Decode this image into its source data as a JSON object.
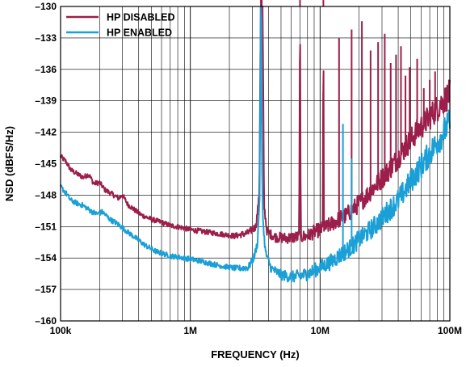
{
  "chart_data": {
    "type": "line",
    "title": "",
    "xlabel": "FREQUENCY (Hz)",
    "ylabel": "NSD (dBFS/Hz)",
    "xscale": "log",
    "xlim": [
      100000,
      100000000
    ],
    "ylim": [
      -160,
      -130
    ],
    "x_ticks": [
      {
        "value": 100000,
        "label": "100k"
      },
      {
        "value": 1000000,
        "label": "1M"
      },
      {
        "value": 10000000,
        "label": "10M"
      },
      {
        "value": 100000000,
        "label": "100M"
      }
    ],
    "y_ticks": [
      {
        "value": -130,
        "label": "–130"
      },
      {
        "value": -133,
        "label": "–133"
      },
      {
        "value": -136,
        "label": "–136"
      },
      {
        "value": -139,
        "label": "–139"
      },
      {
        "value": -142,
        "label": "–142"
      },
      {
        "value": -145,
        "label": "–145"
      },
      {
        "value": -148,
        "label": "–148"
      },
      {
        "value": -151,
        "label": "–151"
      },
      {
        "value": -154,
        "label": "–154"
      },
      {
        "value": -157,
        "label": "–157"
      },
      {
        "value": -160,
        "label": "–160"
      }
    ],
    "grid": true,
    "legend_position": "top-left",
    "series": [
      {
        "name": "HP DISABLED",
        "color": "#9b1f4a",
        "points": [
          [
            100000,
            -144.3
          ],
          [
            110000,
            -144.8
          ],
          [
            120000,
            -145.6
          ],
          [
            135000,
            -146.0
          ],
          [
            150000,
            -146.3
          ],
          [
            165000,
            -146.0
          ],
          [
            180000,
            -146.9
          ],
          [
            200000,
            -146.8
          ],
          [
            220000,
            -147.5
          ],
          [
            250000,
            -147.9
          ],
          [
            280000,
            -148.3
          ],
          [
            300000,
            -148.0
          ],
          [
            330000,
            -148.9
          ],
          [
            380000,
            -149.5
          ],
          [
            420000,
            -149.9
          ],
          [
            500000,
            -150.3
          ],
          [
            600000,
            -150.6
          ],
          [
            700000,
            -150.9
          ],
          [
            800000,
            -151.0
          ],
          [
            1000000,
            -151.3
          ],
          [
            1300000,
            -151.5
          ],
          [
            1700000,
            -151.7
          ],
          [
            2200000,
            -151.9
          ],
          [
            2800000,
            -151.6
          ],
          [
            3200000,
            -151.0
          ],
          [
            3400000,
            -148.0
          ],
          [
            3500000,
            -128.0
          ],
          [
            3600000,
            -128.0
          ],
          [
            3700000,
            -149.0
          ],
          [
            3900000,
            -151.5
          ],
          [
            4500000,
            -152.0
          ],
          [
            5500000,
            -152.1
          ],
          [
            6500000,
            -152.0
          ],
          [
            6900000,
            -152.0
          ],
          [
            7000000,
            -128.0
          ],
          [
            7100000,
            -152.0
          ],
          [
            8000000,
            -151.9
          ],
          [
            9000000,
            -151.5
          ],
          [
            10000000,
            -151.3
          ],
          [
            10500000,
            -151.2
          ],
          [
            10600000,
            -128.0
          ],
          [
            10700000,
            -151.2
          ],
          [
            12000000,
            -150.8
          ],
          [
            14000000,
            -150.3
          ],
          [
            16000000,
            -149.9
          ],
          [
            18000000,
            -149.3
          ],
          [
            20000000,
            -148.8
          ],
          [
            23000000,
            -148.0
          ],
          [
            27000000,
            -147.0
          ],
          [
            32000000,
            -146.0
          ],
          [
            38000000,
            -144.8
          ],
          [
            45000000,
            -143.5
          ],
          [
            55000000,
            -142.0
          ],
          [
            65000000,
            -141.0
          ],
          [
            80000000,
            -139.7
          ],
          [
            100000000,
            -138.3
          ]
        ]
      },
      {
        "name": "HP ENABLED",
        "color": "#1aa0d6",
        "points": [
          [
            100000,
            -147.2
          ],
          [
            110000,
            -147.8
          ],
          [
            120000,
            -148.5
          ],
          [
            135000,
            -148.8
          ],
          [
            150000,
            -149.0
          ],
          [
            170000,
            -149.5
          ],
          [
            190000,
            -149.8
          ],
          [
            210000,
            -149.6
          ],
          [
            240000,
            -150.3
          ],
          [
            280000,
            -150.8
          ],
          [
            320000,
            -151.4
          ],
          [
            380000,
            -152.1
          ],
          [
            450000,
            -152.8
          ],
          [
            550000,
            -153.4
          ],
          [
            700000,
            -153.8
          ],
          [
            900000,
            -154.0
          ],
          [
            1100000,
            -154.2
          ],
          [
            1400000,
            -154.5
          ],
          [
            1800000,
            -154.8
          ],
          [
            2300000,
            -155.0
          ],
          [
            2800000,
            -154.9
          ],
          [
            3100000,
            -153.9
          ],
          [
            3300000,
            -152.5
          ],
          [
            3420000,
            -148.0
          ],
          [
            3500000,
            -130.0
          ],
          [
            3580000,
            -147.0
          ],
          [
            3650000,
            -151.0
          ],
          [
            3800000,
            -153.5
          ],
          [
            4200000,
            -155.0
          ],
          [
            5000000,
            -155.6
          ],
          [
            6000000,
            -155.8
          ],
          [
            7000000,
            -155.7
          ],
          [
            8000000,
            -155.5
          ],
          [
            9000000,
            -155.2
          ],
          [
            10000000,
            -154.9
          ],
          [
            12000000,
            -154.4
          ],
          [
            14000000,
            -153.8
          ],
          [
            16000000,
            -153.3
          ],
          [
            18000000,
            -152.8
          ],
          [
            20000000,
            -152.2
          ],
          [
            24000000,
            -151.4
          ],
          [
            28000000,
            -150.6
          ],
          [
            33000000,
            -149.6
          ],
          [
            40000000,
            -148.5
          ],
          [
            48000000,
            -147.0
          ],
          [
            58000000,
            -145.5
          ],
          [
            70000000,
            -144.0
          ],
          [
            85000000,
            -142.5
          ],
          [
            100000000,
            -141.0
          ]
        ]
      }
    ],
    "spurs": [
      {
        "series": 0,
        "freqs": [
          3500000,
          3550000,
          7000000,
          10600000
        ]
      },
      {
        "series": 0,
        "freqs": [
          14000000,
          17500000,
          21000000,
          24500000,
          28000000,
          31500000,
          35000000,
          38500000,
          42000000,
          45500000,
          49000000,
          56000000,
          63000000,
          70000000,
          77000000,
          84000000,
          91000000
        ]
      },
      {
        "series": 1,
        "freqs": [
          3480000,
          15000000,
          17500000
        ]
      }
    ]
  }
}
